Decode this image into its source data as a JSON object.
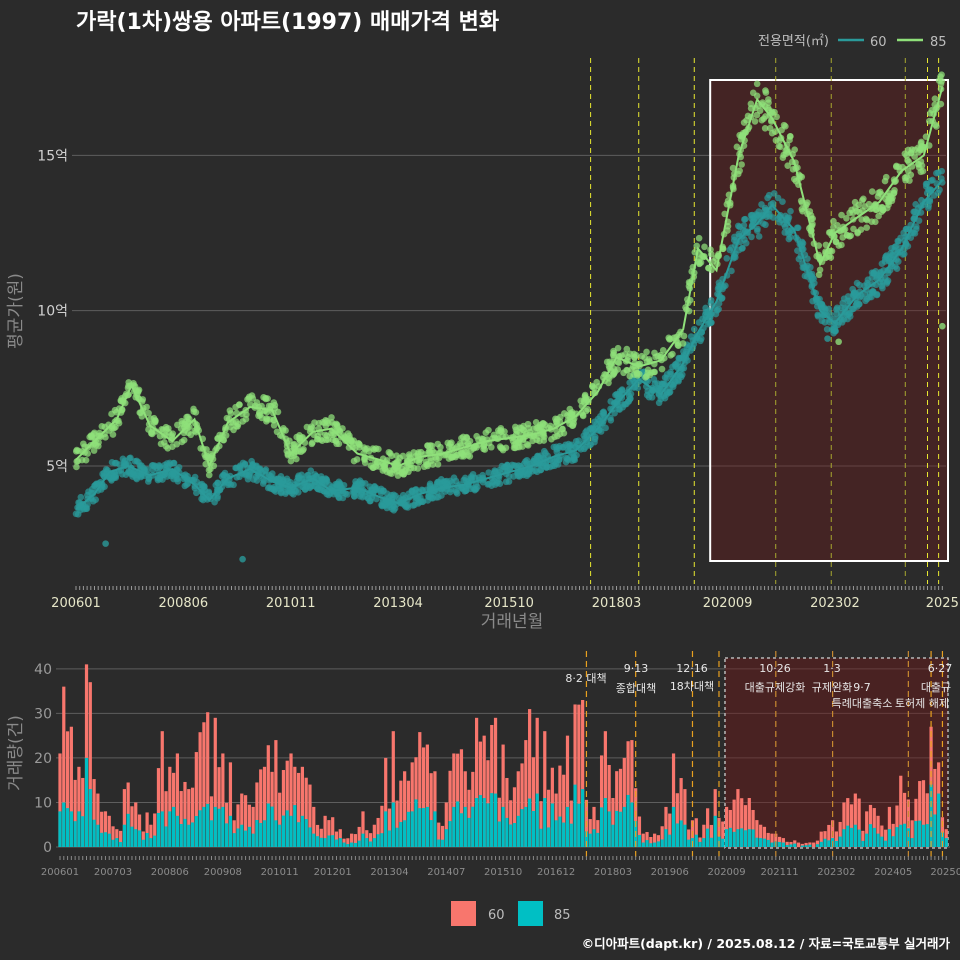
{
  "header": {
    "title": "가락(1차)쌍용 아파트(1997) 매매가격 변화",
    "legend_title": "전용면적(㎡)",
    "series": [
      {
        "name": "60",
        "color": "#2a9a9a"
      },
      {
        "name": "85",
        "color": "#8fe07a"
      }
    ]
  },
  "price_chart": {
    "ylabel": "평균가(원)",
    "xlabel": "거래년월",
    "y_ticks": [
      "5억",
      "10억",
      "15억"
    ],
    "x_ticks": [
      "200601",
      "200806",
      "201011",
      "201304",
      "201510",
      "201803",
      "202009",
      "202302",
      "2025"
    ]
  },
  "volume_chart": {
    "ylabel": "거래량(건)",
    "y_ticks": [
      "0",
      "10",
      "20",
      "30",
      "40"
    ],
    "x_ticks": [
      "200601",
      "200703",
      "200806",
      "200908",
      "201011",
      "201201",
      "201304",
      "201407",
      "201510",
      "201612",
      "201803",
      "201906",
      "202009",
      "202111",
      "202302",
      "202405",
      "20250"
    ],
    "policy_labels": [
      {
        "date": "8·2 대책",
        "name": ""
      },
      {
        "date": "9·13",
        "name": "종합대책"
      },
      {
        "date": "12·16",
        "name": "18차대책"
      },
      {
        "date": "10·26",
        "name": "대출규제강화"
      },
      {
        "date": "1·3",
        "name": "규제완화"
      },
      {
        "date": "9·7",
        "name": "특례대출축소"
      },
      {
        "date": "",
        "name": "토허제 해제"
      },
      {
        "date": "6·27",
        "name": "대출규"
      }
    ],
    "legend": [
      {
        "name": "60",
        "color": "#f8766d"
      },
      {
        "name": "85",
        "color": "#00bfc4"
      }
    ]
  },
  "footer": {
    "credit": "©디아파트(dapt.kr) / 2025.08.12 / 자료=국토교통부 실거래가"
  },
  "chart_data": [
    {
      "type": "scatter",
      "title": "가락(1차)쌍용 아파트(1997) 매매가격 변화",
      "xlabel": "거래년월",
      "ylabel": "평균가(원)",
      "y_unit": "억",
      "xlim": [
        "2006-01",
        "2025-08"
      ],
      "ylim": [
        1.2,
        18.2
      ],
      "legend_position": "top-right",
      "grid": true,
      "series": [
        {
          "name": "60",
          "color": "#2a9a9a",
          "points": [
            [
              "2006-01",
              3.6
            ],
            [
              "2006-06",
              4.1
            ],
            [
              "2006-10",
              4.8
            ],
            [
              "2007-03",
              5.0
            ],
            [
              "2007-09",
              4.7
            ],
            [
              "2008-03",
              4.9
            ],
            [
              "2008-09",
              4.4
            ],
            [
              "2009-01",
              3.9
            ],
            [
              "2009-06",
              4.6
            ],
            [
              "2009-12",
              4.9
            ],
            [
              "2010-06",
              4.5
            ],
            [
              "2010-11",
              4.3
            ],
            [
              "2011-05",
              4.6
            ],
            [
              "2011-10",
              4.2
            ],
            [
              "2012-05",
              4.3
            ],
            [
              "2012-11",
              4.0
            ],
            [
              "2013-04",
              3.8
            ],
            [
              "2013-10",
              4.1
            ],
            [
              "2014-04",
              4.3
            ],
            [
              "2014-10",
              4.4
            ],
            [
              "2015-04",
              4.6
            ],
            [
              "2015-10",
              4.8
            ],
            [
              "2016-04",
              5.0
            ],
            [
              "2016-10",
              5.3
            ],
            [
              "2017-04",
              5.5
            ],
            [
              "2017-10",
              6.2
            ],
            [
              "2018-03",
              7.0
            ],
            [
              "2018-09",
              7.8
            ],
            [
              "2019-03",
              7.3
            ],
            [
              "2019-09",
              8.3
            ],
            [
              "2020-01",
              9.3
            ],
            [
              "2020-06",
              10.3
            ],
            [
              "2020-12",
              12.3
            ],
            [
              "2021-05",
              12.8
            ],
            [
              "2021-09",
              13.4
            ],
            [
              "2022-03",
              12.6
            ],
            [
              "2022-10",
              10.0
            ],
            [
              "2023-02",
              9.6
            ],
            [
              "2023-08",
              10.5
            ],
            [
              "2024-02",
              11.0
            ],
            [
              "2024-08",
              12.0
            ],
            [
              "2025-02",
              13.5
            ],
            [
              "2025-07",
              14.2
            ]
          ],
          "outliers": [
            [
              "2006-09",
              2.5
            ],
            [
              "2009-10",
              2.0
            ],
            [
              "2022-12",
              9.1
            ]
          ]
        },
        {
          "name": "85",
          "color": "#8fe07a",
          "points": [
            [
              "2006-01",
              5.2
            ],
            [
              "2006-06",
              5.8
            ],
            [
              "2006-12",
              6.5
            ],
            [
              "2007-04",
              7.6
            ],
            [
              "2007-09",
              6.3
            ],
            [
              "2008-03",
              5.8
            ],
            [
              "2008-09",
              6.5
            ],
            [
              "2009-01",
              5.0
            ],
            [
              "2009-06",
              6.4
            ],
            [
              "2009-12",
              6.9
            ],
            [
              "2010-06",
              6.8
            ],
            [
              "2010-11",
              5.4
            ],
            [
              "2011-05",
              6.1
            ],
            [
              "2011-10",
              6.2
            ],
            [
              "2012-05",
              5.4
            ],
            [
              "2012-11",
              5.2
            ],
            [
              "2013-04",
              5.0
            ],
            [
              "2013-10",
              5.3
            ],
            [
              "2014-04",
              5.4
            ],
            [
              "2014-10",
              5.6
            ],
            [
              "2015-04",
              5.8
            ],
            [
              "2015-10",
              5.9
            ],
            [
              "2016-04",
              6.0
            ],
            [
              "2016-10",
              6.2
            ],
            [
              "2017-04",
              6.6
            ],
            [
              "2017-10",
              7.4
            ],
            [
              "2018-03",
              8.5
            ],
            [
              "2018-09",
              8.2
            ],
            [
              "2019-03",
              8.4
            ],
            [
              "2019-09",
              9.4
            ],
            [
              "2020-01",
              12.0
            ],
            [
              "2020-06",
              11.3
            ],
            [
              "2020-12",
              15.0
            ],
            [
              "2021-05",
              16.8
            ],
            [
              "2021-09",
              16.2
            ],
            [
              "2022-03",
              14.8
            ],
            [
              "2022-10",
              11.5
            ],
            [
              "2023-02",
              12.5
            ],
            [
              "2023-08",
              13.0
            ],
            [
              "2024-02",
              13.5
            ],
            [
              "2024-08",
              14.5
            ],
            [
              "2025-02",
              15.0
            ],
            [
              "2025-07",
              17.2
            ]
          ],
          "outliers": [
            [
              "2023-03",
              9.0
            ],
            [
              "2025-07",
              9.5
            ]
          ]
        }
      ],
      "annotations": {
        "policy_lines": [
          "2017-08",
          "2018-09",
          "2019-12",
          "2021-10",
          "2023-01",
          "2024-09",
          "2025-03",
          "2025-06"
        ],
        "highlight_box": [
          "2020-07",
          "2025-08"
        ]
      }
    },
    {
      "type": "bar",
      "stacked": true,
      "ylabel": "거래량(건)",
      "ylim": [
        0,
        44
      ],
      "grid": true,
      "legend_position": "bottom",
      "series": [
        {
          "name": "60",
          "color": "#f8766d"
        },
        {
          "name": "85",
          "color": "#00bfc4"
        }
      ],
      "months": [
        [
          "2006-01",
          21,
          8
        ],
        [
          "2006-02",
          36,
          10
        ],
        [
          "2006-04",
          27,
          8
        ],
        [
          "2006-06",
          18,
          8
        ],
        [
          "2006-08",
          41,
          20
        ],
        [
          "2006-09",
          37,
          13
        ],
        [
          "2006-11",
          12,
          5
        ],
        [
          "2007-02",
          7,
          3
        ],
        [
          "2007-04",
          4,
          2
        ],
        [
          "2007-06",
          13,
          5
        ],
        [
          "2007-09",
          10,
          4
        ],
        [
          "2008-01",
          5,
          2
        ],
        [
          "2008-04",
          26,
          8
        ],
        [
          "2008-06",
          18,
          8
        ],
        [
          "2008-08",
          21,
          7
        ],
        [
          "2008-11",
          13,
          5
        ],
        [
          "2009-03",
          28,
          9
        ],
        [
          "2009-06",
          29,
          9
        ],
        [
          "2009-08",
          21,
          9
        ],
        [
          "2009-10",
          19,
          7
        ],
        [
          "2010-01",
          12,
          5
        ],
        [
          "2010-04",
          9,
          3
        ],
        [
          "2010-07",
          18,
          6
        ],
        [
          "2010-10",
          24,
          6
        ],
        [
          "2011-02",
          21,
          7
        ],
        [
          "2011-05",
          18,
          7
        ],
        [
          "2011-08",
          9,
          3
        ],
        [
          "2011-11",
          7,
          2
        ],
        [
          "2012-03",
          4,
          2
        ],
        [
          "2012-06",
          3,
          1
        ],
        [
          "2012-09",
          8,
          3
        ],
        [
          "2012-12",
          5,
          2
        ],
        [
          "2013-03",
          20,
          8
        ],
        [
          "2013-05",
          26,
          10
        ],
        [
          "2013-08",
          17,
          6
        ],
        [
          "2013-10",
          19,
          8
        ],
        [
          "2014-02",
          23,
          9
        ],
        [
          "2014-04",
          17,
          8
        ],
        [
          "2014-07",
          10,
          4
        ],
        [
          "2014-09",
          21,
          9
        ],
        [
          "2014-12",
          17,
          9
        ],
        [
          "2015-03",
          29,
          11
        ],
        [
          "2015-05",
          25,
          11
        ],
        [
          "2015-08",
          29,
          12
        ],
        [
          "2015-10",
          23,
          9
        ],
        [
          "2016-02",
          17,
          7
        ],
        [
          "2016-04",
          24,
          9
        ],
        [
          "2016-07",
          29,
          12
        ],
        [
          "2016-09",
          26,
          11
        ],
        [
          "2016-12",
          12,
          6
        ],
        [
          "2017-03",
          25,
          9
        ],
        [
          "2017-05",
          32,
          14
        ],
        [
          "2017-07",
          33,
          13
        ],
        [
          "2017-10",
          9,
          4
        ],
        [
          "2018-01",
          26,
          11
        ],
        [
          "2018-03",
          11,
          5
        ],
        [
          "2018-06",
          20,
          9
        ],
        [
          "2018-08",
          24,
          10
        ],
        [
          "2018-11",
          3,
          1
        ],
        [
          "2019-02",
          3,
          1
        ],
        [
          "2019-05",
          9,
          4
        ],
        [
          "2019-07",
          21,
          9
        ],
        [
          "2019-10",
          13,
          5
        ],
        [
          "2019-12",
          6,
          2
        ],
        [
          "2020-03",
          5,
          2
        ],
        [
          "2020-06",
          13,
          7
        ],
        [
          "2020-09",
          9,
          4
        ],
        [
          "2020-12",
          13,
          4
        ],
        [
          "2021-03",
          11,
          4
        ],
        [
          "2021-06",
          5,
          2
        ],
        [
          "2021-09",
          3,
          1
        ],
        [
          "2021-12",
          2,
          1
        ],
        [
          "2022-04",
          1,
          0
        ],
        [
          "2022-08",
          1,
          0
        ],
        [
          "2023-01",
          6,
          2
        ],
        [
          "2023-04",
          10,
          4
        ],
        [
          "2023-07",
          12,
          5
        ],
        [
          "2023-10",
          8,
          3
        ],
        [
          "2024-01",
          7,
          3
        ],
        [
          "2024-04",
          9,
          4
        ],
        [
          "2024-07",
          16,
          5
        ],
        [
          "2024-10",
          6,
          2
        ],
        [
          "2025-01",
          15,
          5
        ],
        [
          "2025-03",
          27,
          14
        ],
        [
          "2025-05",
          19,
          12
        ],
        [
          "2025-07",
          4,
          2
        ]
      ]
    }
  ]
}
